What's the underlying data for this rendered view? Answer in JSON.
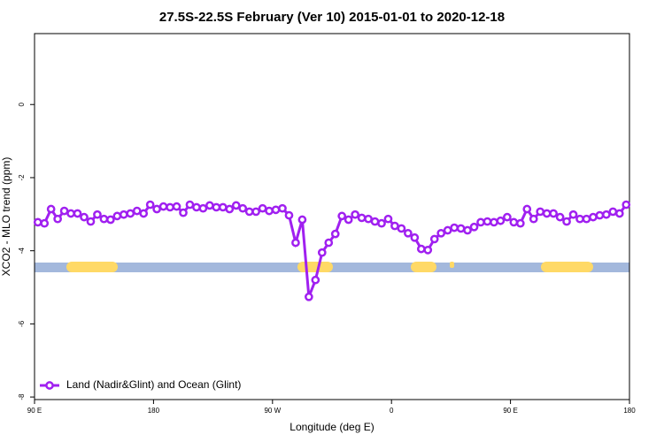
{
  "chart_data": {
    "type": "line",
    "title": "27.5S-22.5S February (Ver 10)   2015-01-01 to 2020-12-18",
    "x_label": "Longitude (deg E)",
    "y_label": "XCO2 - MLO trend (ppm)",
    "xlim": [
      90,
      540
    ],
    "xticks": [
      {
        "value": 90,
        "label": "90 E"
      },
      {
        "value": 180,
        "label": "180"
      },
      {
        "value": 270,
        "label": "90 W"
      },
      {
        "value": 360,
        "label": "0"
      },
      {
        "value": 450,
        "label": "90 E"
      },
      {
        "value": 540,
        "label": "180"
      }
    ],
    "ylim": [
      -8.07,
      1.94
    ],
    "yticks": [
      -8,
      -6,
      -4,
      -2,
      0
    ],
    "legend": "bottom-left",
    "x": [
      92.5,
      97.5,
      102.5,
      107.5,
      112.5,
      117.5,
      122.5,
      127.5,
      132.5,
      137.5,
      142.5,
      147.5,
      152.5,
      157.5,
      162.5,
      167.5,
      172.5,
      177.5,
      182.5,
      187.5,
      192.5,
      197.5,
      202.5,
      207.5,
      212.5,
      217.5,
      222.5,
      227.5,
      232.5,
      237.5,
      242.5,
      247.5,
      252.5,
      257.5,
      262.5,
      267.5,
      272.5,
      277.5,
      282.5,
      287.5,
      292.5,
      297.5,
      302.5,
      307.5,
      312.5,
      317.5,
      322.5,
      327.5,
      332.5,
      337.5,
      342.5,
      347.5,
      352.5,
      357.5,
      362.5,
      367.5,
      372.5,
      377.5,
      382.5,
      387.5,
      392.5,
      397.5,
      402.5,
      407.5,
      412.5,
      417.5,
      422.5,
      427.5,
      432.5,
      437.5,
      442.5,
      447.5,
      452.5,
      457.5,
      462.5,
      467.5,
      472.5,
      477.5,
      482.5,
      487.5,
      492.5,
      497.5,
      502.5,
      507.5,
      512.5,
      517.5,
      522.5,
      527.5,
      532.5,
      537.5
    ],
    "series": [
      {
        "name": "Land (Nadir&Glint) and Ocean (Glint)",
        "color": "#a020f0",
        "values": [
          -3.22,
          -3.25,
          -2.86,
          -3.13,
          -2.91,
          -2.98,
          -2.98,
          -3.08,
          -3.2,
          -3.01,
          -3.13,
          -3.15,
          -3.05,
          -3.01,
          -2.98,
          -2.91,
          -2.98,
          -2.74,
          -2.86,
          -2.79,
          -2.81,
          -2.79,
          -2.96,
          -2.74,
          -2.81,
          -2.84,
          -2.76,
          -2.81,
          -2.81,
          -2.86,
          -2.76,
          -2.84,
          -2.93,
          -2.93,
          -2.84,
          -2.91,
          -2.88,
          -2.84,
          -3.03,
          -3.78,
          -3.15,
          -5.26,
          -4.8,
          -4.05,
          -3.78,
          -3.54,
          -3.05,
          -3.15,
          -3.01,
          -3.1,
          -3.13,
          -3.2,
          -3.25,
          -3.13,
          -3.32,
          -3.39,
          -3.52,
          -3.64,
          -3.95,
          -3.98,
          -3.68,
          -3.52,
          -3.44,
          -3.37,
          -3.39,
          -3.44,
          -3.35,
          -3.22,
          -3.2,
          -3.22,
          -3.18,
          -3.08,
          -3.22,
          -3.25,
          -2.86,
          -3.13,
          -2.93,
          -2.98,
          -2.98,
          -3.08,
          -3.2,
          -3.01,
          -3.13,
          -3.13,
          -3.08,
          -3.03,
          -3.01,
          -2.93,
          -2.98,
          -2.74
        ]
      }
    ]
  }
}
